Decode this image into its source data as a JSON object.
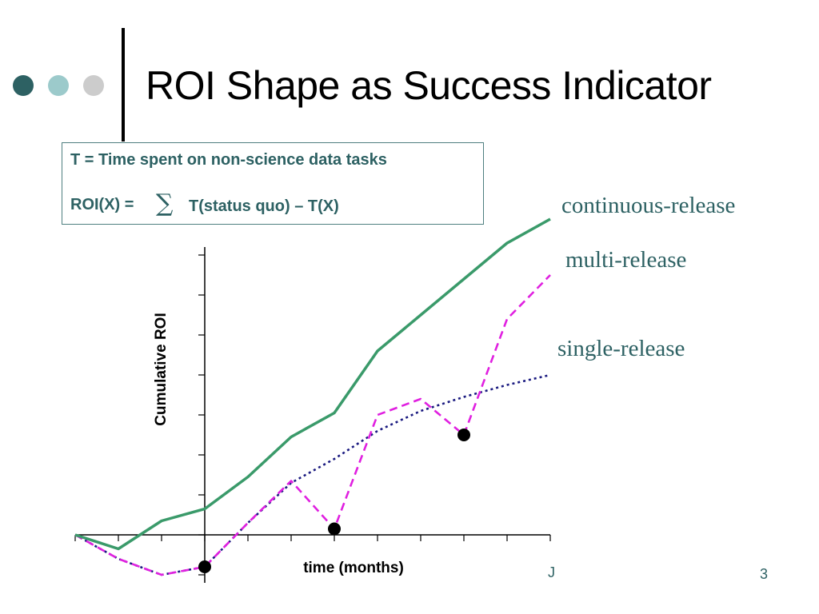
{
  "slide": {
    "title": "ROI Shape as Success Indicator",
    "page_number": "3",
    "footer_fragment": "J",
    "bullet_dot_colors": [
      "#2d6163",
      "#9ccacb",
      "#cccccc"
    ]
  },
  "definition_box": {
    "line1": "T = Time spent on non-science data tasks",
    "line2_prefix": "ROI(X) =",
    "sigma": "∑",
    "line2_suffix": "T(status quo) – T(X)"
  },
  "chart_data": {
    "type": "line",
    "title": "",
    "xlabel": "time (months)",
    "ylabel": "Cumulative ROI",
    "x": [
      -3,
      -2,
      -1,
      0,
      1,
      2,
      3,
      4,
      5,
      6,
      7,
      8
    ],
    "xlim": [
      -3,
      8
    ],
    "ylim": [
      -1.2,
      7.2
    ],
    "grid": false,
    "series": [
      {
        "name": "continuous-release",
        "color": "#3a9a6a",
        "style": "solid",
        "values": [
          0,
          -0.35,
          0.35,
          0.65,
          1.45,
          2.45,
          3.05,
          4.6,
          5.5,
          6.4,
          7.3,
          7.9
        ]
      },
      {
        "name": "multi-release",
        "color": "#e020e0",
        "style": "dashed",
        "values": [
          0,
          -0.6,
          -1.0,
          -0.8,
          0.3,
          1.35,
          0.15,
          3.0,
          3.4,
          2.5,
          5.4,
          6.5
        ],
        "release_markers_x": [
          0,
          3,
          6
        ]
      },
      {
        "name": "single-release",
        "color": "#1a1a80",
        "style": "dotted",
        "values": [
          0,
          -0.6,
          -1.0,
          -0.8,
          0.3,
          1.3,
          1.9,
          2.6,
          3.1,
          3.45,
          3.75,
          4.0
        ],
        "release_markers_x": []
      }
    ]
  }
}
